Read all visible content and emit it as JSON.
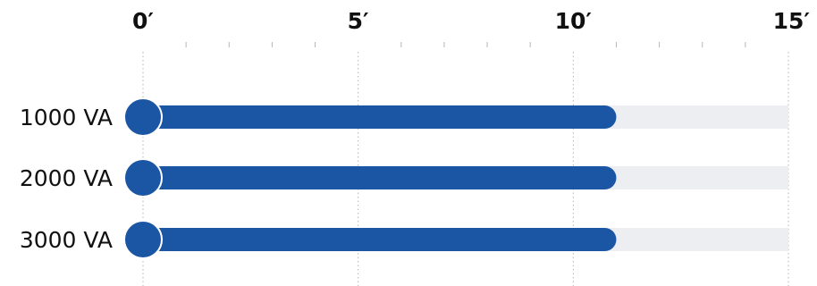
{
  "chart_data": {
    "type": "bar",
    "orientation": "horizontal",
    "categories": [
      "1000 VA",
      "2000 VA",
      "3000 VA"
    ],
    "values": [
      11,
      11,
      11
    ],
    "max": 15,
    "x_ticks": [
      {
        "value": 0,
        "label": "0′"
      },
      {
        "value": 5,
        "label": "5′"
      },
      {
        "value": 10,
        "label": "10′"
      },
      {
        "value": 15,
        "label": "15′"
      }
    ],
    "minor_tick_step": 1,
    "xlim": [
      0,
      15
    ],
    "grid": true,
    "colors": {
      "bar": "#1b56a5",
      "track": "#eceef1",
      "gridline": "#b5b5b5",
      "text": "#111111"
    }
  }
}
